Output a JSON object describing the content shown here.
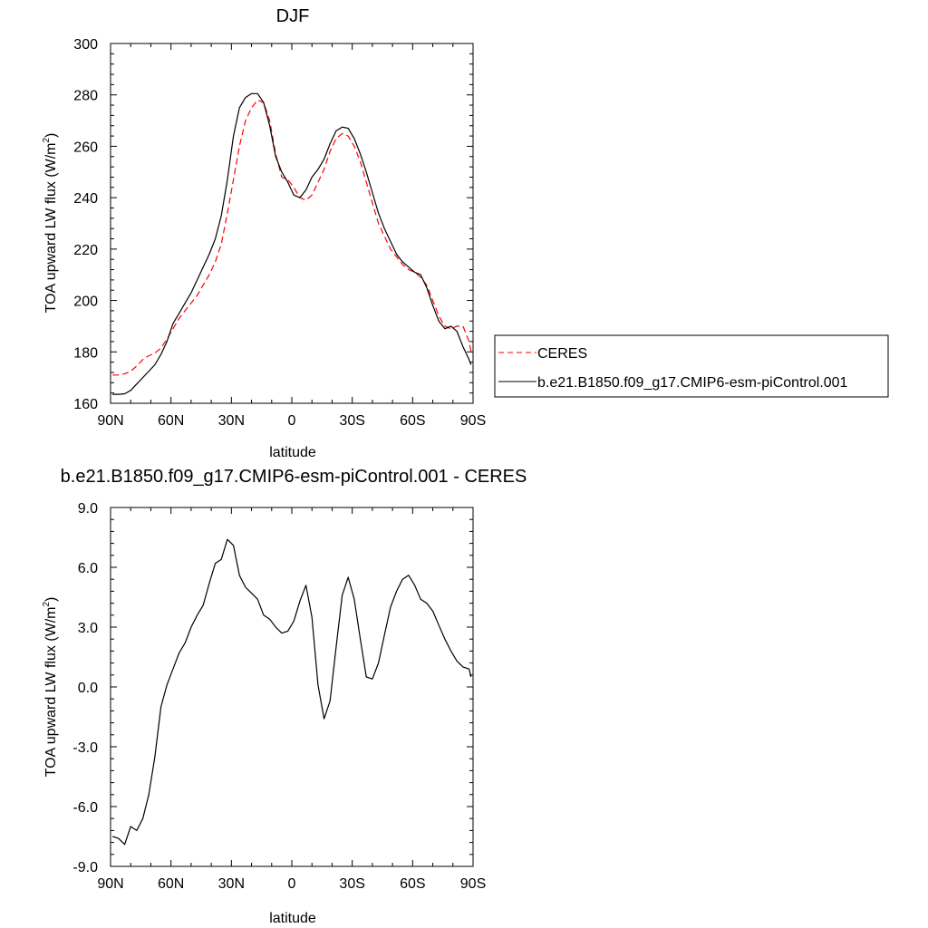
{
  "chart_data": [
    {
      "type": "line",
      "title": "DJF",
      "xlabel": "latitude",
      "ylabel": "TOA upward LW flux (W/m",
      "ylabel_sup": "2",
      "ylabel_tail": ")",
      "xlim": [
        90,
        -90
      ],
      "ylim": [
        160,
        300
      ],
      "x_ticks": [
        90,
        60,
        30,
        0,
        -30,
        -60,
        -90
      ],
      "x_tick_labels": [
        "90N",
        "60N",
        "30N",
        "0",
        "30S",
        "60S",
        "90S"
      ],
      "y_ticks": [
        160,
        180,
        200,
        220,
        240,
        260,
        280,
        300
      ],
      "y_tick_labels": [
        "160",
        "180",
        "200",
        "220",
        "240",
        "260",
        "280",
        "300"
      ],
      "legend_position": "right",
      "series": [
        {
          "name": "CERES",
          "color": "#ff0000",
          "dash": "dashed",
          "x": [
            89,
            86,
            83,
            80,
            77,
            74,
            71,
            68,
            65,
            62,
            59,
            56,
            53,
            50,
            47,
            44,
            41,
            38,
            35,
            32,
            29,
            26,
            23,
            20,
            17,
            14,
            11,
            8,
            5,
            2,
            -1,
            -4,
            -7,
            -10,
            -13,
            -16,
            -19,
            -22,
            -25,
            -28,
            -31,
            -34,
            -37,
            -40,
            -43,
            -46,
            -49,
            -52,
            -55,
            -58,
            -61,
            -64,
            -67,
            -70,
            -73,
            -76,
            -79,
            -82,
            -85,
            -88,
            -89
          ],
          "y": [
            171,
            171,
            171.5,
            172.5,
            174.5,
            177,
            178.5,
            179.5,
            181.5,
            185,
            189,
            193,
            196,
            199,
            202,
            206,
            210,
            215,
            222,
            234,
            247,
            260,
            270,
            275,
            278,
            277,
            270,
            257,
            248,
            247,
            244,
            240,
            239,
            241,
            246,
            251,
            258,
            263,
            265,
            264,
            260,
            254,
            246,
            238,
            230,
            225,
            220,
            217,
            214,
            212,
            211,
            209,
            206,
            200,
            194,
            190,
            189,
            190,
            190,
            184,
            180
          ]
        },
        {
          "name": "b.e21.B1850.f09_g17.CMIP6-esm-piControl.001",
          "color": "#000000",
          "dash": "solid",
          "x": [
            89,
            86,
            83,
            80,
            77,
            74,
            71,
            68,
            65,
            62,
            59,
            56,
            53,
            50,
            47,
            44,
            41,
            38,
            35,
            32,
            29,
            26,
            23,
            20,
            17,
            14,
            11,
            8,
            5,
            2,
            -1,
            -4,
            -7,
            -10,
            -13,
            -16,
            -19,
            -22,
            -25,
            -28,
            -31,
            -34,
            -37,
            -40,
            -43,
            -46,
            -49,
            -52,
            -55,
            -58,
            -61,
            -64,
            -67,
            -70,
            -73,
            -76,
            -79,
            -82,
            -85,
            -88,
            -89
          ],
          "y": [
            163.5,
            163.5,
            163.7,
            165,
            167.5,
            170,
            172.5,
            175,
            179,
            184,
            191,
            195,
            199,
            203,
            208,
            213,
            218,
            224,
            233,
            247,
            264,
            275,
            279,
            280.5,
            280.5,
            277,
            268,
            256,
            250,
            246,
            241,
            240,
            243,
            248,
            251,
            255,
            261,
            266,
            267.5,
            267,
            263,
            257,
            250,
            242,
            234,
            228,
            223,
            218,
            215,
            213,
            211,
            210,
            205,
            198,
            192,
            189,
            190,
            188,
            182,
            177,
            175
          ]
        }
      ]
    },
    {
      "type": "line",
      "title": "b.e21.B1850.f09_g17.CMIP6-esm-piControl.001 - CERES",
      "xlabel": "latitude",
      "ylabel": "TOA upward LW flux (W/m",
      "ylabel_sup": "2",
      "ylabel_tail": ")",
      "xlim": [
        90,
        -90
      ],
      "ylim": [
        -9,
        9
      ],
      "x_ticks": [
        90,
        60,
        30,
        0,
        -30,
        -60,
        -90
      ],
      "x_tick_labels": [
        "90N",
        "60N",
        "30N",
        "0",
        "30S",
        "60S",
        "90S"
      ],
      "y_ticks": [
        -9,
        -6,
        -3,
        0,
        3,
        6,
        9
      ],
      "y_tick_labels": [
        "-9.0",
        "-6.0",
        "-3.0",
        "0.0",
        "3.0",
        "6.0",
        "9.0"
      ],
      "series": [
        {
          "color": "#000000",
          "dash": "solid",
          "x": [
            89,
            86,
            83,
            80,
            77,
            74,
            71,
            68,
            65,
            62,
            59,
            56,
            53,
            50,
            47,
            44,
            41,
            38,
            35,
            32,
            29,
            26,
            23,
            20,
            17,
            14,
            11,
            8,
            5,
            2,
            -1,
            -4,
            -7,
            -10,
            -13,
            -16,
            -19,
            -22,
            -25,
            -28,
            -31,
            -34,
            -37,
            -40,
            -43,
            -46,
            -49,
            -52,
            -55,
            -58,
            -61,
            -64,
            -67,
            -70,
            -73,
            -76,
            -79,
            -82,
            -85,
            -88,
            -89
          ],
          "y": [
            -7.5,
            -7.6,
            -7.9,
            -7.0,
            -7.2,
            -6.6,
            -5.4,
            -3.5,
            -1.0,
            0.1,
            0.9,
            1.7,
            2.2,
            3.0,
            3.6,
            4.1,
            5.2,
            6.2,
            6.4,
            7.4,
            7.1,
            5.6,
            5.0,
            4.7,
            4.4,
            3.6,
            3.4,
            3.0,
            2.7,
            2.8,
            3.3,
            4.3,
            5.1,
            3.5,
            0.1,
            -1.6,
            -0.7,
            2.0,
            4.6,
            5.5,
            4.4,
            2.4,
            0.5,
            0.4,
            1.2,
            2.6,
            4.0,
            4.8,
            5.4,
            5.6,
            5.1,
            4.4,
            4.2,
            3.8,
            3.1,
            2.4,
            1.8,
            1.3,
            1.0,
            0.9,
            0.5
          ]
        }
      ]
    }
  ]
}
